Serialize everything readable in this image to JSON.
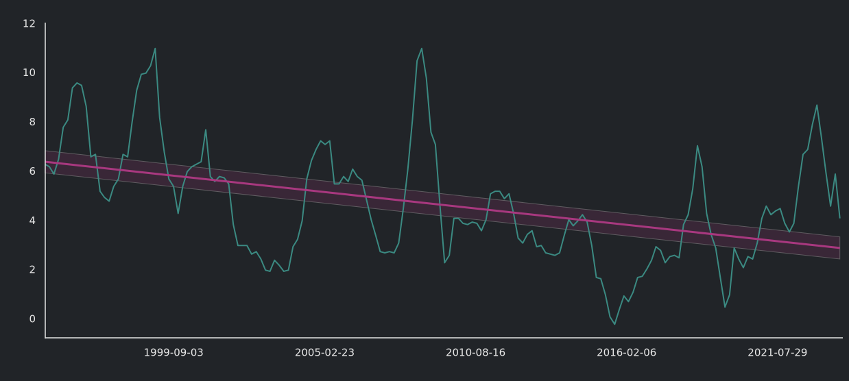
{
  "chart_data": {
    "type": "line",
    "x": [
      "1995-01-01",
      "1995-03-01",
      "1995-05-01",
      "1995-07-01",
      "1995-09-01",
      "1995-11-01",
      "1996-01-01",
      "1996-03-01",
      "1996-05-01",
      "1996-07-01",
      "1996-09-01",
      "1996-11-01",
      "1997-01-01",
      "1997-03-01",
      "1997-05-01",
      "1997-07-01",
      "1997-09-01",
      "1997-11-01",
      "1998-01-01",
      "1998-03-01",
      "1998-05-01",
      "1998-07-01",
      "1998-09-01",
      "1998-11-01",
      "1999-01-01",
      "1999-03-01",
      "1999-05-01",
      "1999-07-01",
      "1999-09-01",
      "1999-11-01",
      "2000-01-01",
      "2000-03-01",
      "2000-05-01",
      "2000-07-01",
      "2000-09-01",
      "2000-11-01",
      "2001-01-01",
      "2001-03-01",
      "2001-05-01",
      "2001-07-01",
      "2001-09-01",
      "2001-11-01",
      "2002-01-01",
      "2002-03-01",
      "2002-05-01",
      "2002-07-01",
      "2002-09-01",
      "2002-11-01",
      "2003-01-01",
      "2003-03-01",
      "2003-05-01",
      "2003-07-01",
      "2003-09-01",
      "2003-11-01",
      "2004-01-01",
      "2004-03-01",
      "2004-05-01",
      "2004-07-01",
      "2004-09-01",
      "2004-11-01",
      "2005-01-01",
      "2005-03-01",
      "2005-05-01",
      "2005-07-01",
      "2005-09-01",
      "2005-11-01",
      "2006-01-01",
      "2006-03-01",
      "2006-05-01",
      "2006-07-01",
      "2006-09-01",
      "2006-11-01",
      "2007-01-01",
      "2007-03-01",
      "2007-05-01",
      "2007-07-01",
      "2007-09-01",
      "2007-11-01",
      "2008-01-01",
      "2008-03-01",
      "2008-05-01",
      "2008-07-01",
      "2008-09-01",
      "2008-11-01",
      "2009-01-01",
      "2009-03-01",
      "2009-05-01",
      "2009-07-01",
      "2009-09-01",
      "2009-11-01",
      "2010-01-01",
      "2010-03-01",
      "2010-05-01",
      "2010-07-01",
      "2010-09-01",
      "2010-11-01",
      "2011-01-01",
      "2011-03-01",
      "2011-05-01",
      "2011-07-01",
      "2011-09-01",
      "2011-11-01",
      "2012-01-01",
      "2012-03-01",
      "2012-05-01",
      "2012-07-01",
      "2012-09-01",
      "2012-11-01",
      "2013-01-01",
      "2013-03-01",
      "2013-05-01",
      "2013-07-01",
      "2013-09-01",
      "2013-11-01",
      "2014-01-01",
      "2014-03-01",
      "2014-05-01",
      "2014-07-01",
      "2014-09-01",
      "2014-11-01",
      "2015-01-01",
      "2015-03-01",
      "2015-05-01",
      "2015-07-01",
      "2015-09-01",
      "2015-11-01",
      "2016-01-01",
      "2016-03-01",
      "2016-05-01",
      "2016-07-01",
      "2016-09-01",
      "2016-11-01",
      "2017-01-01",
      "2017-03-01",
      "2017-05-01",
      "2017-07-01",
      "2017-09-01",
      "2017-11-01",
      "2018-01-01",
      "2018-03-01",
      "2018-05-01",
      "2018-07-01",
      "2018-09-01",
      "2018-11-01",
      "2019-01-01",
      "2019-03-01",
      "2019-05-01",
      "2019-07-01",
      "2019-09-01",
      "2019-11-01",
      "2020-01-01",
      "2020-03-01",
      "2020-05-01",
      "2020-07-01",
      "2020-09-01",
      "2020-11-01",
      "2021-01-01",
      "2021-03-01",
      "2021-05-01",
      "2021-07-01",
      "2021-09-01",
      "2021-11-01",
      "2022-01-01",
      "2022-03-01",
      "2022-05-01",
      "2022-07-01",
      "2022-09-01",
      "2022-11-01",
      "2023-01-01",
      "2023-03-01",
      "2023-05-01",
      "2023-07-01",
      "2023-09-01",
      "2023-11-01"
    ],
    "series": [
      {
        "color": "#3b8a82",
        "values": [
          6.3,
          6.2,
          5.9,
          6.5,
          7.8,
          8.1,
          9.4,
          9.6,
          9.5,
          8.65,
          6.6,
          6.7,
          5.2,
          4.95,
          4.8,
          5.4,
          5.7,
          6.7,
          6.6,
          8.0,
          9.3,
          9.95,
          10.0,
          10.3,
          11.0,
          8.2,
          6.8,
          5.7,
          5.4,
          4.3,
          5.4,
          6.0,
          6.2,
          6.3,
          6.4,
          7.7,
          5.8,
          5.6,
          5.8,
          5.75,
          5.5,
          3.85,
          3.0,
          3.0,
          3.0,
          2.65,
          2.75,
          2.45,
          2.0,
          1.95,
          2.4,
          2.2,
          1.95,
          2.0,
          2.95,
          3.25,
          4.0,
          5.7,
          6.45,
          6.9,
          7.25,
          7.1,
          7.25,
          5.5,
          5.5,
          5.8,
          5.6,
          6.1,
          5.8,
          5.65,
          4.85,
          4.05,
          3.4,
          2.75,
          2.7,
          2.75,
          2.7,
          3.1,
          4.5,
          6.1,
          8.1,
          10.5,
          11.0,
          9.8,
          7.6,
          7.1,
          4.6,
          2.3,
          2.6,
          4.1,
          4.1,
          3.9,
          3.85,
          3.95,
          3.9,
          3.6,
          4.05,
          5.1,
          5.2,
          5.2,
          4.9,
          5.1,
          4.3,
          3.3,
          3.1,
          3.45,
          3.6,
          2.95,
          3.0,
          2.7,
          2.65,
          2.6,
          2.7,
          3.4,
          4.05,
          3.8,
          4.0,
          4.25,
          3.95,
          3.0,
          1.7,
          1.65,
          1.0,
          0.1,
          -0.2,
          0.4,
          0.95,
          0.72,
          1.1,
          1.7,
          1.75,
          2.05,
          2.4,
          2.95,
          2.8,
          2.3,
          2.55,
          2.6,
          2.5,
          3.85,
          4.25,
          5.3,
          7.05,
          6.2,
          4.3,
          3.45,
          2.9,
          1.7,
          0.5,
          1.0,
          2.9,
          2.45,
          2.1,
          2.55,
          2.45,
          3.1,
          4.1,
          4.6,
          4.25,
          4.4,
          4.5,
          3.9,
          3.55,
          3.9,
          5.4,
          6.7,
          6.9,
          7.9,
          8.7,
          7.4,
          5.95,
          4.6,
          5.9,
          4.1
        ]
      }
    ],
    "trend": {
      "x": [
        "1995-01-01",
        "2023-11-01"
      ],
      "values": [
        6.4,
        2.9
      ],
      "lower": [
        5.95,
        2.45
      ],
      "upper": [
        6.85,
        3.35
      ],
      "color": "#a8387f"
    },
    "xlim": [
      "1995-01-06",
      "2023-12-10"
    ],
    "xticks": [
      "1999-09-03",
      "2005-02-23",
      "2010-08-16",
      "2016-02-06",
      "2021-07-29"
    ],
    "ylim": [
      -0.75,
      12.05
    ],
    "yticks": [
      0,
      2,
      4,
      6,
      8,
      10,
      12
    ]
  }
}
